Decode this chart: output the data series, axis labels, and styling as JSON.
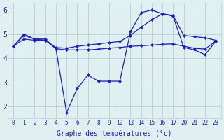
{
  "background_color": "#e0f0f0",
  "grid_color": "#b8d0d0",
  "line_color": "#1e1eb4",
  "xlabel": "Graphe des températures (°c)",
  "xlim": [
    -0.5,
    23.5
  ],
  "ylim": [
    1.5,
    6.3
  ],
  "yticks": [
    2,
    3,
    4,
    5,
    6
  ],
  "ylabel_fontsize": 7,
  "vx": [
    0,
    1,
    2,
    3,
    4,
    5,
    6,
    7,
    8,
    9,
    10,
    11,
    12,
    13,
    14,
    15,
    16,
    17,
    18,
    19
  ],
  "line1_y": [
    4.5,
    4.95,
    4.8,
    4.8,
    4.4,
    1.75,
    2.75,
    3.3,
    3.05,
    3.05,
    3.05,
    5.1,
    5.9,
    6.0,
    5.85,
    5.75,
    4.45,
    4.35,
    4.15,
    4.7
  ],
  "line2_y": [
    4.5,
    4.8,
    4.75,
    4.75,
    4.4,
    4.35,
    4.35,
    4.35,
    4.38,
    4.42,
    4.45,
    4.5,
    4.52,
    4.55,
    4.58,
    4.6,
    4.5,
    4.42,
    4.38,
    4.72
  ],
  "line3_y": [
    4.5,
    5.0,
    4.8,
    4.75,
    4.45,
    4.42,
    4.5,
    4.55,
    4.6,
    4.65,
    4.7,
    4.95,
    5.3,
    5.6,
    5.85,
    5.78,
    4.95,
    4.9,
    4.85,
    4.75
  ],
  "tick_labels": [
    "0",
    "1",
    "2",
    "3",
    "4",
    "5",
    "6",
    "7",
    "8",
    "9",
    "10",
    "13",
    "14",
    "15",
    "16",
    "17",
    "20",
    "21",
    "22",
    "23"
  ]
}
